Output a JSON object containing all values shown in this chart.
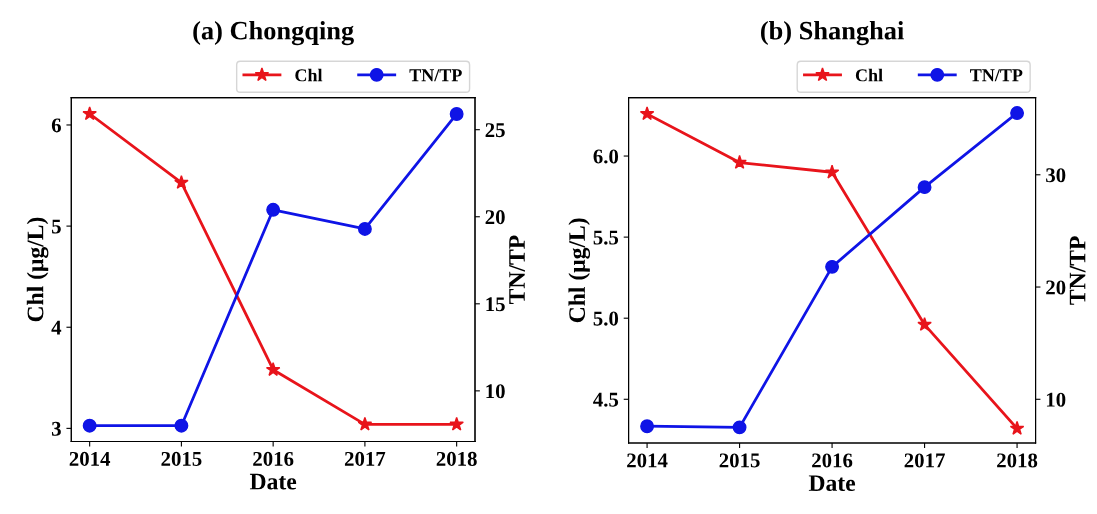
{
  "chart_data": [
    {
      "type": "line",
      "title": "(a) Chongqing",
      "xlabel": "Date",
      "ylabel": "Chl (μg/L)",
      "y2label": "TN/TP",
      "x": [
        2014,
        2015,
        2016,
        2017,
        2018
      ],
      "xlim": [
        2013.8,
        2018.2
      ],
      "xticks": [
        2014,
        2015,
        2016,
        2017,
        2018
      ],
      "ylim": [
        2.87,
        6.27
      ],
      "yticks": [
        3,
        4,
        5,
        6
      ],
      "y2lim": [
        7.09,
        26.84
      ],
      "y2ticks": [
        10,
        15,
        20,
        25
      ],
      "legend": "top right",
      "grid": false,
      "series": [
        {
          "name": "Chl",
          "color": "#e8141b",
          "marker": "star",
          "values": [
            6.11,
            5.43,
            3.58,
            3.04,
            3.04
          ]
        },
        {
          "name": "TN/TP",
          "color": "#0f14e6",
          "marker": "circle",
          "axis": "y2",
          "values": [
            8.0,
            8.0,
            20.4,
            19.3,
            25.9
          ]
        }
      ]
    },
    {
      "type": "line",
      "title": "(b) Shanghai",
      "xlabel": "Date",
      "ylabel": "Chl (μg/L)",
      "y2label": "TN/TP",
      "x": [
        2014,
        2015,
        2016,
        2017,
        2018
      ],
      "xlim": [
        2013.8,
        2018.2
      ],
      "xticks": [
        2014,
        2015,
        2016,
        2017,
        2018
      ],
      "ylim": [
        4.23,
        6.36
      ],
      "yticks": [
        4.5,
        {
          "value": 5,
          "label": "5.0"
        },
        5.5,
        {
          "value": 6,
          "label": "6.0"
        }
      ],
      "y2lim": [
        6.1,
        36.87
      ],
      "y2ticks": [
        10,
        20,
        30
      ],
      "legend": "top right",
      "grid": false,
      "series": [
        {
          "name": "Chl",
          "color": "#e8141b",
          "marker": "star",
          "values": [
            6.26,
            5.96,
            5.9,
            4.96,
            4.32
          ]
        },
        {
          "name": "TN/TP",
          "color": "#0f14e6",
          "marker": "circle",
          "axis": "y2",
          "values": [
            7.6,
            7.5,
            21.8,
            28.9,
            35.5
          ]
        }
      ]
    }
  ]
}
